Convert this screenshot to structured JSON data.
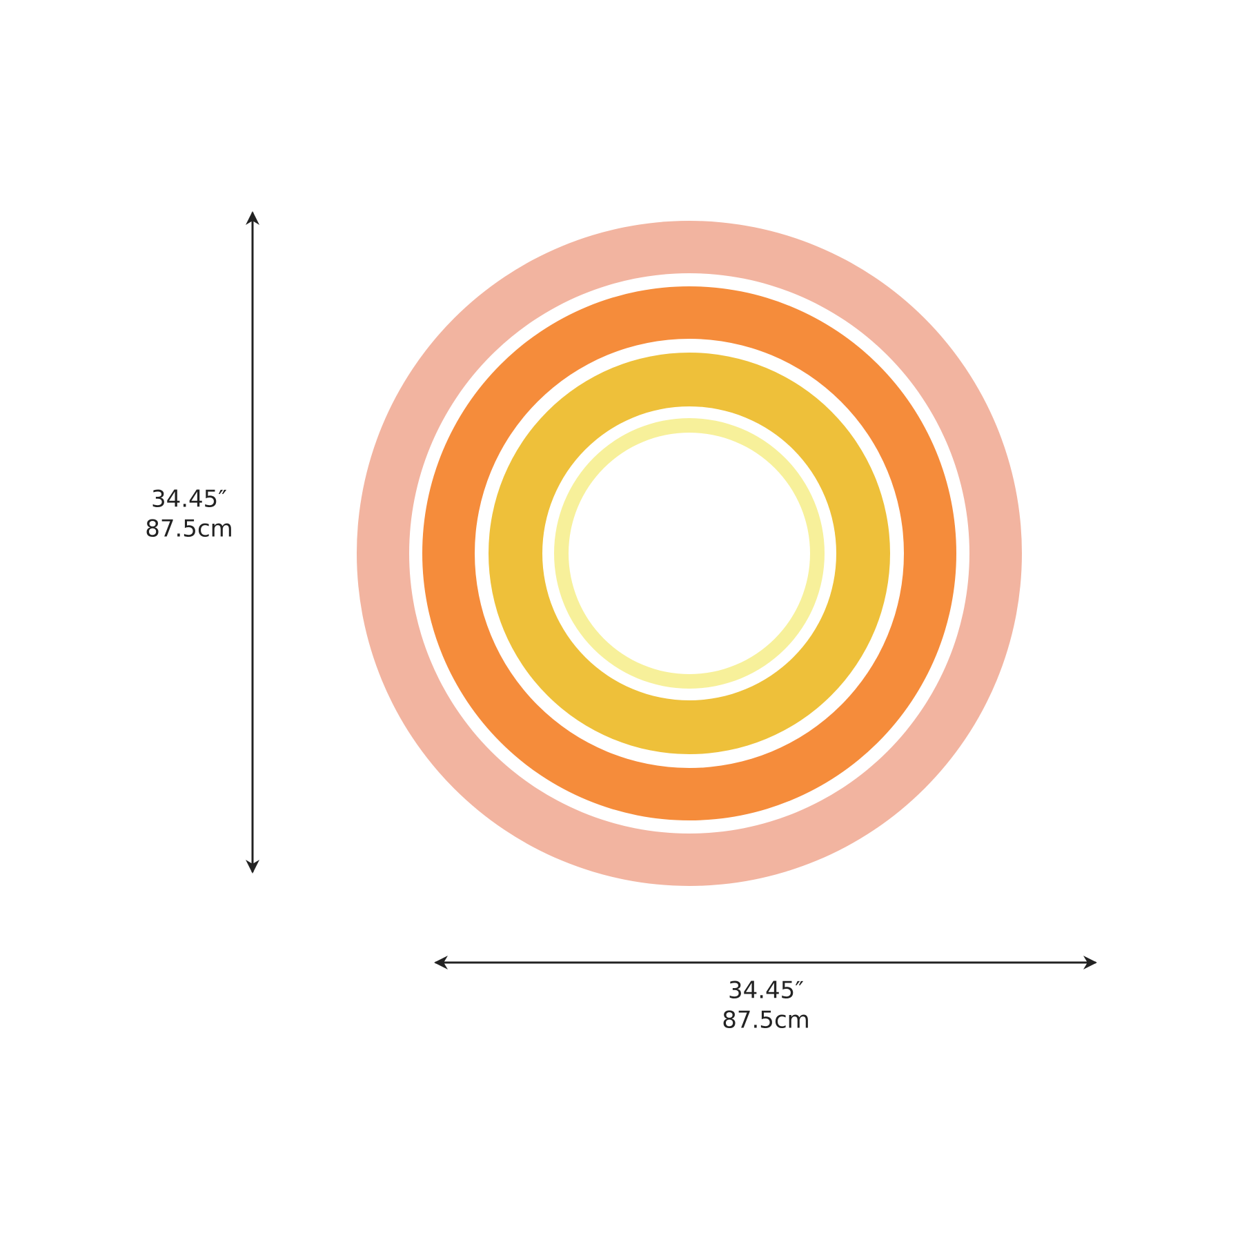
{
  "height": {
    "inches": "34.45″",
    "cm": "87.5cm"
  },
  "width": {
    "inches": "34.45″",
    "cm": "87.5cm"
  }
}
